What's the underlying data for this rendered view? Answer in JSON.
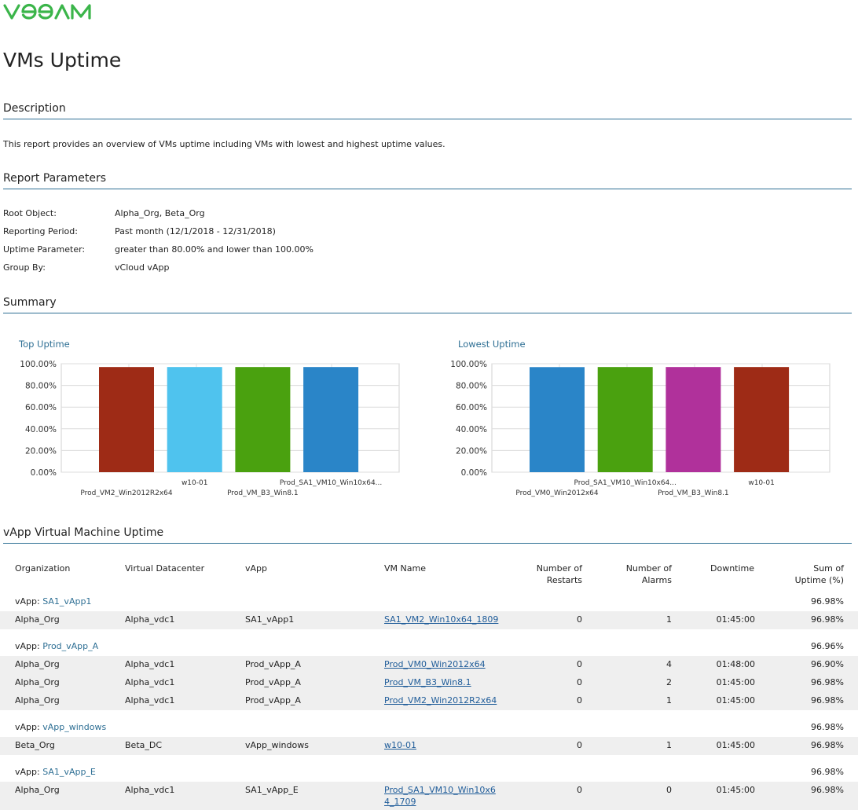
{
  "logo": {
    "text": "veeam",
    "color": "#3bb54a"
  },
  "title": "VMs Uptime",
  "sections": {
    "description": "Description",
    "parameters": "Report Parameters",
    "summary": "Summary",
    "vapp_uptime": "vApp Virtual Machine Uptime"
  },
  "description_text": "This report provides an overview of VMs uptime including VMs with lowest and highest uptime values.",
  "parameters": [
    {
      "key": "Root Object:",
      "value": "Alpha_Org, Beta_Org"
    },
    {
      "key": "Reporting Period:",
      "value": "Past month (12/1/2018 - 12/31/2018)"
    },
    {
      "key": "Uptime Parameter:",
      "value": "greater than 80.00% and lower than 100.00%"
    },
    {
      "key": "Group By:",
      "value": "vCloud vApp"
    }
  ],
  "chart_data": [
    {
      "type": "bar",
      "title": "Top Uptime",
      "categories": [
        "Prod_VM2_Win2012R2x64",
        "w10-01",
        "Prod_VM_B3_Win8.1",
        "Prod_SA1_VM10_Win10x64..."
      ],
      "values": [
        96.98,
        96.98,
        96.98,
        96.98
      ],
      "colors": [
        "#9e2b16",
        "#4fc3ee",
        "#4aa10f",
        "#2a85c8"
      ],
      "ylim": [
        0,
        100
      ],
      "yticks": [
        "0.00%",
        "20.00%",
        "40.00%",
        "60.00%",
        "80.00%",
        "100.00%"
      ],
      "grid": true
    },
    {
      "type": "bar",
      "title": "Lowest Uptime",
      "categories": [
        "Prod_VM0_Win2012x64",
        "Prod_SA1_VM10_Win10x64...",
        "Prod_VM_B3_Win8.1",
        "w10-01"
      ],
      "values": [
        96.9,
        96.98,
        96.98,
        96.98
      ],
      "colors": [
        "#2a85c8",
        "#4aa10f",
        "#b0319b",
        "#9e2b16"
      ],
      "ylim": [
        0,
        100
      ],
      "yticks": [
        "0.00%",
        "20.00%",
        "40.00%",
        "60.00%",
        "80.00%",
        "100.00%"
      ],
      "grid": true
    }
  ],
  "table": {
    "headers": {
      "organization": "Organization",
      "datacenter": "Virtual Datacenter",
      "vapp": "vApp",
      "vm_name": "VM Name",
      "restarts_1": "Number of",
      "restarts_2": "Restarts",
      "alarms_1": "Number of",
      "alarms_2": "Alarms",
      "downtime": "Downtime",
      "uptime_1": "Sum of",
      "uptime_2": "Uptime (%)"
    },
    "group_prefix": "vApp:",
    "groups": [
      {
        "name": "SA1_vApp1",
        "sum": "96.98%",
        "rows": [
          {
            "org": "Alpha_Org",
            "vdc": "Alpha_vdc1",
            "vapp": "SA1_vApp1",
            "vm": "SA1_VM2_Win10x64_1809",
            "vm2": "",
            "restarts": "0",
            "alarms": "1",
            "downtime": "01:45:00",
            "uptime": "96.98%"
          }
        ]
      },
      {
        "name": "Prod_vApp_A",
        "sum": "96.96%",
        "rows": [
          {
            "org": "Alpha_Org",
            "vdc": "Alpha_vdc1",
            "vapp": "Prod_vApp_A",
            "vm": "Prod_VM0_Win2012x64",
            "vm2": "",
            "restarts": "0",
            "alarms": "4",
            "downtime": "01:48:00",
            "uptime": "96.90%"
          },
          {
            "org": "Alpha_Org",
            "vdc": "Alpha_vdc1",
            "vapp": "Prod_vApp_A",
            "vm": "Prod_VM_B3_Win8.1",
            "vm2": "",
            "restarts": "0",
            "alarms": "2",
            "downtime": "01:45:00",
            "uptime": "96.98%"
          },
          {
            "org": "Alpha_Org",
            "vdc": "Alpha_vdc1",
            "vapp": "Prod_vApp_A",
            "vm": "Prod_VM2_Win2012R2x64",
            "vm2": "",
            "restarts": "0",
            "alarms": "1",
            "downtime": "01:45:00",
            "uptime": "96.98%"
          }
        ]
      },
      {
        "name": "vApp_windows",
        "sum": "96.98%",
        "rows": [
          {
            "org": "Beta_Org",
            "vdc": "Beta_DC",
            "vapp": "vApp_windows",
            "vm": "w10-01",
            "vm2": "",
            "restarts": "0",
            "alarms": "1",
            "downtime": "01:45:00",
            "uptime": "96.98%"
          }
        ]
      },
      {
        "name": "SA1_vApp_E",
        "sum": "96.98%",
        "rows": [
          {
            "org": "Alpha_Org",
            "vdc": "Alpha_vdc1",
            "vapp": "SA1_vApp_E",
            "vm": "Prod_SA1_VM10_Win10x6",
            "vm2": "4_1709",
            "restarts": "0",
            "alarms": "0",
            "downtime": "01:45:00",
            "uptime": "96.98%"
          }
        ]
      }
    ]
  }
}
